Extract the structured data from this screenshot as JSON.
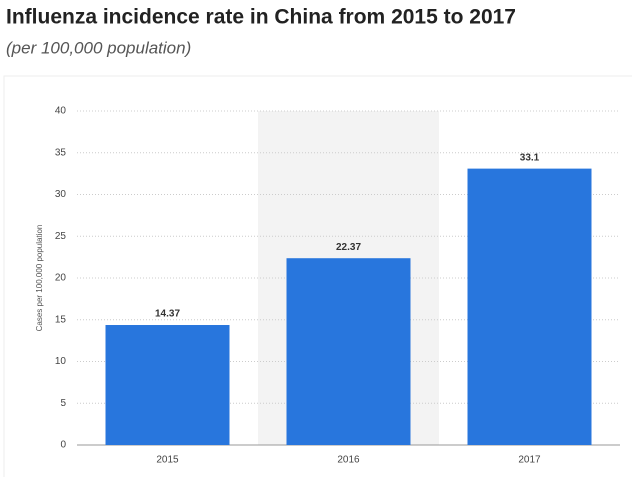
{
  "chart_data": {
    "type": "bar",
    "title": "Influenza incidence rate in China from 2015 to 2017",
    "subtitle": "(per 100,000 population)",
    "y_label": "Cases per 100,000 population",
    "categories": [
      "2015",
      "2016",
      "2017"
    ],
    "values": [
      14.37,
      22.37,
      33.1
    ],
    "color": "#2876dd",
    "ylim": [
      0,
      40
    ],
    "yticks": [
      0,
      5,
      10,
      15,
      20,
      25,
      30,
      35,
      40
    ],
    "grid": true
  }
}
